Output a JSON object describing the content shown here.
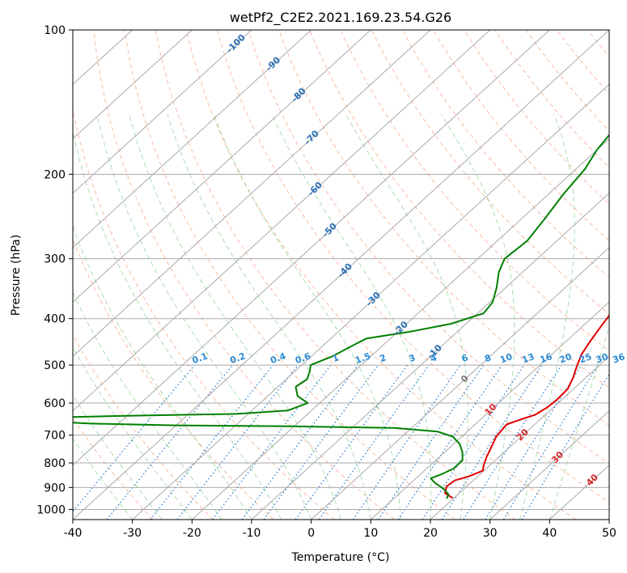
{
  "chart_data": {
    "type": "line",
    "title": "wetPf2_C2E2.2021.169.23.54.G26",
    "xlabel": "Temperature (°C)",
    "ylabel": "Pressure (hPa)",
    "xlim": [
      -40,
      50
    ],
    "ylim": [
      1050,
      100
    ],
    "x_ticks": [
      -40,
      -30,
      -20,
      -10,
      0,
      10,
      20,
      30,
      40,
      50
    ],
    "y_ticks": [
      100,
      200,
      300,
      400,
      500,
      600,
      700,
      800,
      900,
      1000
    ],
    "series": [
      {
        "name": "Temperature",
        "color": "#e00000",
        "points": [
          [
            19.8,
            947
          ],
          [
            17.6,
            925
          ],
          [
            16.6,
            895
          ],
          [
            16.9,
            870
          ],
          [
            18.4,
            855
          ],
          [
            19.0,
            845
          ],
          [
            19.8,
            830
          ],
          [
            19.0,
            810
          ],
          [
            18.0,
            780
          ],
          [
            17.0,
            745
          ],
          [
            15.8,
            705
          ],
          [
            15.5,
            680
          ],
          [
            15.3,
            665
          ],
          [
            16.2,
            655
          ],
          [
            17.2,
            645
          ],
          [
            18.3,
            635
          ],
          [
            19.0,
            612
          ],
          [
            19.2,
            590
          ],
          [
            19.0,
            560
          ],
          [
            17.8,
            530
          ],
          [
            16.5,
            505
          ],
          [
            15.0,
            475
          ],
          [
            14.0,
            445
          ],
          [
            13.1,
            415
          ],
          [
            12.2,
            385
          ],
          [
            12.0,
            360
          ],
          [
            11.5,
            330
          ],
          [
            9.5,
            300
          ],
          [
            6.5,
            270
          ],
          [
            3.5,
            250
          ],
          [
            0.5,
            230
          ],
          [
            -3.0,
            210
          ],
          [
            -6.0,
            195
          ],
          [
            -8.5,
            180
          ],
          [
            -11.0,
            163
          ],
          [
            -12.0,
            150
          ],
          [
            -11.5,
            138
          ],
          [
            -9.5,
            126
          ],
          [
            -8.0,
            118
          ],
          [
            -7.0,
            112
          ],
          [
            -5.5,
            106
          ],
          [
            -4.5,
            102
          ],
          [
            -4.0,
            100
          ]
        ]
      },
      {
        "name": "Dewpoint",
        "color": "#008000",
        "points": [
          [
            18.9,
            950
          ],
          [
            18.4,
            930
          ],
          [
            16.5,
            905
          ],
          [
            14.0,
            880
          ],
          [
            12.5,
            862
          ],
          [
            13.5,
            845
          ],
          [
            14.5,
            822
          ],
          [
            14.5,
            790
          ],
          [
            13.0,
            760
          ],
          [
            11.0,
            730
          ],
          [
            8.5,
            705
          ],
          [
            5.0,
            688
          ],
          [
            -3.0,
            676
          ],
          [
            -20.0,
            671
          ],
          [
            -40.0,
            668
          ],
          [
            -55.0,
            662
          ],
          [
            -62.0,
            655
          ],
          [
            -70.0,
            646
          ],
          [
            -50.0,
            638
          ],
          [
            -32.0,
            632
          ],
          [
            -24.0,
            622
          ],
          [
            -22.0,
            600
          ],
          [
            -25.0,
            580
          ],
          [
            -27.0,
            555
          ],
          [
            -26.5,
            535
          ],
          [
            -27.5,
            515
          ],
          [
            -28.5,
            500
          ],
          [
            -26.5,
            480
          ],
          [
            -25.0,
            455
          ],
          [
            -24.0,
            440
          ],
          [
            -18.0,
            426
          ],
          [
            -12.5,
            410
          ],
          [
            -9.0,
            390
          ],
          [
            -9.5,
            370
          ],
          [
            -11.5,
            345
          ],
          [
            -14.0,
            320
          ],
          [
            -15.5,
            300
          ],
          [
            -15.0,
            275
          ],
          [
            -16.0,
            250
          ],
          [
            -17.5,
            220
          ],
          [
            -18.5,
            195
          ],
          [
            -20.0,
            178
          ],
          [
            -21.0,
            160
          ],
          [
            -21.5,
            145
          ],
          [
            -21.0,
            135
          ],
          [
            -22.0,
            128
          ],
          [
            -24.5,
            123
          ],
          [
            -26.5,
            117
          ],
          [
            -26.0,
            112
          ],
          [
            -24.0,
            106
          ],
          [
            -22.5,
            102
          ],
          [
            -22.0,
            100
          ]
        ]
      }
    ],
    "isotherm_labels": [
      "-100",
      "-90",
      "-80",
      "-70",
      "-60",
      "-50",
      "-40",
      "-30",
      "-20",
      "-10"
    ],
    "mixing_ratio_labels": [
      "0.1",
      "0.2",
      "0.4",
      "0.6",
      "1",
      "1.5",
      "2",
      "3",
      "4",
      "6",
      "8",
      "10",
      "13",
      "16",
      "20",
      "25",
      "30",
      "36"
    ],
    "mixing_ratio_values": [
      0.1,
      0.2,
      0.4,
      0.6,
      1,
      1.5,
      2,
      3,
      4,
      6,
      8,
      10,
      13,
      16,
      20,
      25,
      30,
      36
    ],
    "warm_isotherm_labels": [
      "0",
      "10",
      "20",
      "30",
      "40"
    ],
    "grid": true
  }
}
